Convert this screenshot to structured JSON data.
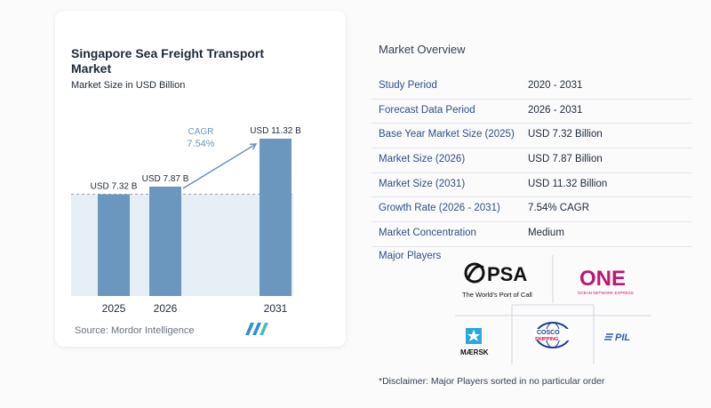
{
  "chart_data": {
    "type": "bar",
    "title": "Singapore Sea Freight Transport Market",
    "subtitle": "Market Size in USD Billion",
    "categories": [
      "2025",
      "2026",
      "2031"
    ],
    "values": [
      7.32,
      7.87,
      11.32
    ],
    "value_labels": [
      "USD 7.32 B",
      "USD 7.87 B",
      "USD 11.32 B"
    ],
    "cagr_label": "CAGR",
    "cagr_value": "7.54%",
    "ylim": [
      0,
      11.32
    ],
    "bar_color": "#6b96bd",
    "baseline_fill": "#e6eef6",
    "grid": false
  },
  "source": "Source: Mordor Intelligence",
  "overview": {
    "title": "Market Overview",
    "rows": [
      {
        "label": "Study Period",
        "value": "2020 - 2031"
      },
      {
        "label": "Forecast Data Period",
        "value": "2026 - 2031"
      },
      {
        "label": "Base Year Market Size (2025)",
        "value": "USD 7.32 Billion"
      },
      {
        "label": "Market Size (2026)",
        "value": "USD 7.87 Billion"
      },
      {
        "label": "Market Size (2031)",
        "value": "USD 11.32 Billion"
      },
      {
        "label": "Growth Rate (2026 - 2031)",
        "value": "7.54% CAGR"
      },
      {
        "label": "Market Concentration",
        "value": "Medium"
      }
    ]
  },
  "players": {
    "label": "Major Players",
    "logos": {
      "psa": "PSA",
      "psa_tagline": "The World's Port of Call",
      "one": "ONE",
      "one_tagline": "OCEAN NETWORK EXPRESS",
      "maersk": "MÆRSK",
      "cosco_top": "COSCO",
      "cosco_bottom": "SHIPPING",
      "pil": "PIL"
    }
  },
  "disclaimer": "*Disclaimer: Major Players sorted in no particular order",
  "colors": {
    "label_blue": "#2f4f86",
    "one_magenta": "#c0166f",
    "maersk_blue": "#2aa7dc",
    "cosco_blue": "#1d3d8f",
    "pil_blue": "#2b5fa8"
  }
}
